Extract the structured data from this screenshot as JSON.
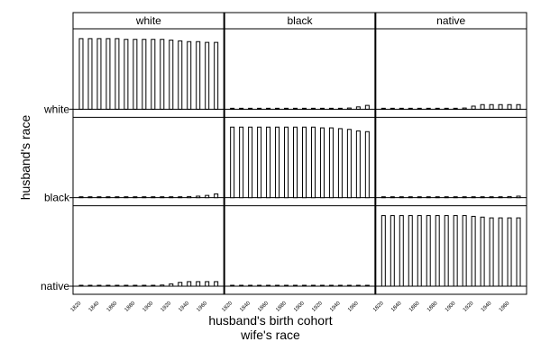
{
  "chart_data": {
    "type": "bar",
    "subtype": "trellis",
    "xlabel": "husband's birth cohort",
    "xlabel_secondary": "wife's race",
    "ylabel": "husband's race",
    "column_panels": [
      "white",
      "black",
      "native"
    ],
    "row_panels": [
      "white",
      "black",
      "native"
    ],
    "tick_labels": [
      "1820",
      "1830",
      "1840",
      "1850",
      "1860",
      "1870",
      "1880",
      "1890",
      "1900",
      "1910",
      "1920",
      "1930",
      "1940",
      "1950",
      "1960",
      "1970"
    ],
    "ylim": [
      0,
      1
    ],
    "grid": false,
    "legend": "none",
    "panels": [
      {
        "wife": "white",
        "husband": "white",
        "values": [
          0.93,
          0.93,
          0.93,
          0.93,
          0.93,
          0.92,
          0.92,
          0.92,
          0.92,
          0.92,
          0.91,
          0.9,
          0.89,
          0.89,
          0.88,
          0.88
        ]
      },
      {
        "wife": "black",
        "husband": "white",
        "values": [
          0.005,
          0.005,
          0.005,
          0.005,
          0.005,
          0.005,
          0.005,
          0.005,
          0.005,
          0.005,
          0.005,
          0.005,
          0.005,
          0.015,
          0.03,
          0.05
        ]
      },
      {
        "wife": "native",
        "husband": "white",
        "values": [
          0.005,
          0.005,
          0.005,
          0.005,
          0.005,
          0.005,
          0.005,
          0.005,
          0.005,
          0.015,
          0.04,
          0.06,
          0.06,
          0.06,
          0.06,
          0.06
        ]
      },
      {
        "wife": "white",
        "husband": "black",
        "values": [
          0.005,
          0.005,
          0.005,
          0.005,
          0.005,
          0.005,
          0.005,
          0.005,
          0.005,
          0.005,
          0.005,
          0.005,
          0.015,
          0.02,
          0.03,
          0.05
        ]
      },
      {
        "wife": "black",
        "husband": "black",
        "values": [
          0.93,
          0.93,
          0.93,
          0.93,
          0.93,
          0.93,
          0.93,
          0.93,
          0.93,
          0.93,
          0.92,
          0.92,
          0.91,
          0.9,
          0.88,
          0.87
        ]
      },
      {
        "wife": "native",
        "husband": "black",
        "values": [
          0.005,
          0.005,
          0.005,
          0.005,
          0.005,
          0.005,
          0.005,
          0.005,
          0.005,
          0.005,
          0.005,
          0.005,
          0.005,
          0.005,
          0.015,
          0.02
        ]
      },
      {
        "wife": "white",
        "husband": "native",
        "values": [
          0.005,
          0.005,
          0.005,
          0.005,
          0.005,
          0.005,
          0.005,
          0.005,
          0.005,
          0.015,
          0.03,
          0.05,
          0.06,
          0.06,
          0.06,
          0.06
        ]
      },
      {
        "wife": "black",
        "husband": "native",
        "values": [
          0.005,
          0.005,
          0.005,
          0.005,
          0.005,
          0.005,
          0.005,
          0.005,
          0.005,
          0.005,
          0.005,
          0.005,
          0.005,
          0.005,
          0.005,
          0.005
        ]
      },
      {
        "wife": "native",
        "husband": "native",
        "values": [
          0.93,
          0.93,
          0.93,
          0.93,
          0.93,
          0.93,
          0.93,
          0.93,
          0.93,
          0.93,
          0.92,
          0.91,
          0.9,
          0.9,
          0.9,
          0.9
        ]
      }
    ],
    "colors": {
      "bar_fill": "#ffffff",
      "bar_stroke": "#000000",
      "strip_fill": "#ffffff"
    }
  }
}
